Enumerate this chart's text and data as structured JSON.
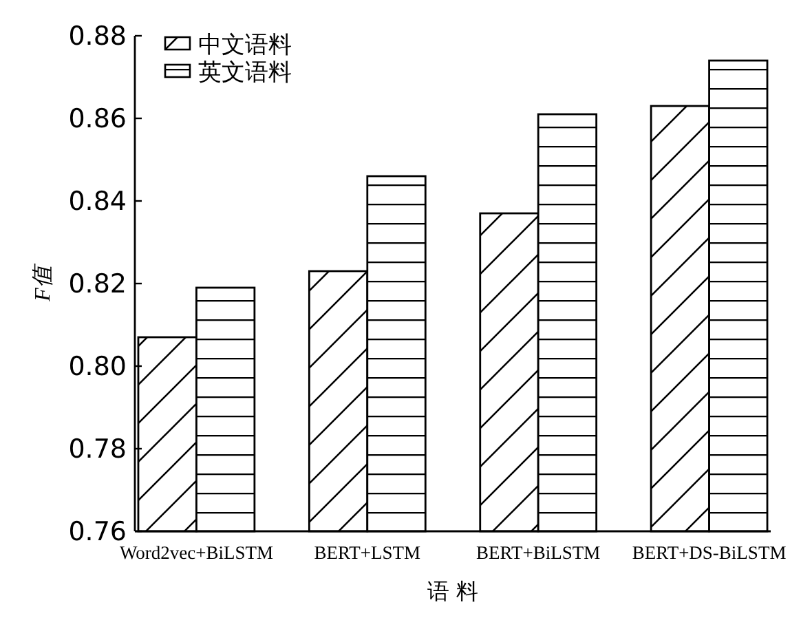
{
  "chart_data": {
    "type": "bar",
    "xlabel": "语 料",
    "ylabel": "F值",
    "categories": [
      "Word2vec+BiLSTM",
      "BERT+LSTM",
      "BERT+BiLSTM",
      "BERT+DS-BiLSTM"
    ],
    "series": [
      {
        "name": "中文语料",
        "color": "#000000",
        "values": [
          0.807,
          0.823,
          0.837,
          0.863
        ]
      },
      {
        "name": "英文语料",
        "color": "#000000",
        "values": [
          0.819,
          0.846,
          0.861,
          0.874
        ]
      }
    ],
    "ylim": [
      0.76,
      0.88
    ],
    "yticks": [
      {
        "value": 0.76,
        "label": "0.76"
      },
      {
        "value": 0.78,
        "label": "0.78"
      },
      {
        "value": 0.8,
        "label": "0.80"
      },
      {
        "value": 0.82,
        "label": "0.82"
      },
      {
        "value": 0.84,
        "label": "0.84"
      },
      {
        "value": 0.86,
        "label": "0.86"
      },
      {
        "value": 0.88,
        "label": "0.88"
      }
    ],
    "grid": false,
    "legend": "top left"
  }
}
